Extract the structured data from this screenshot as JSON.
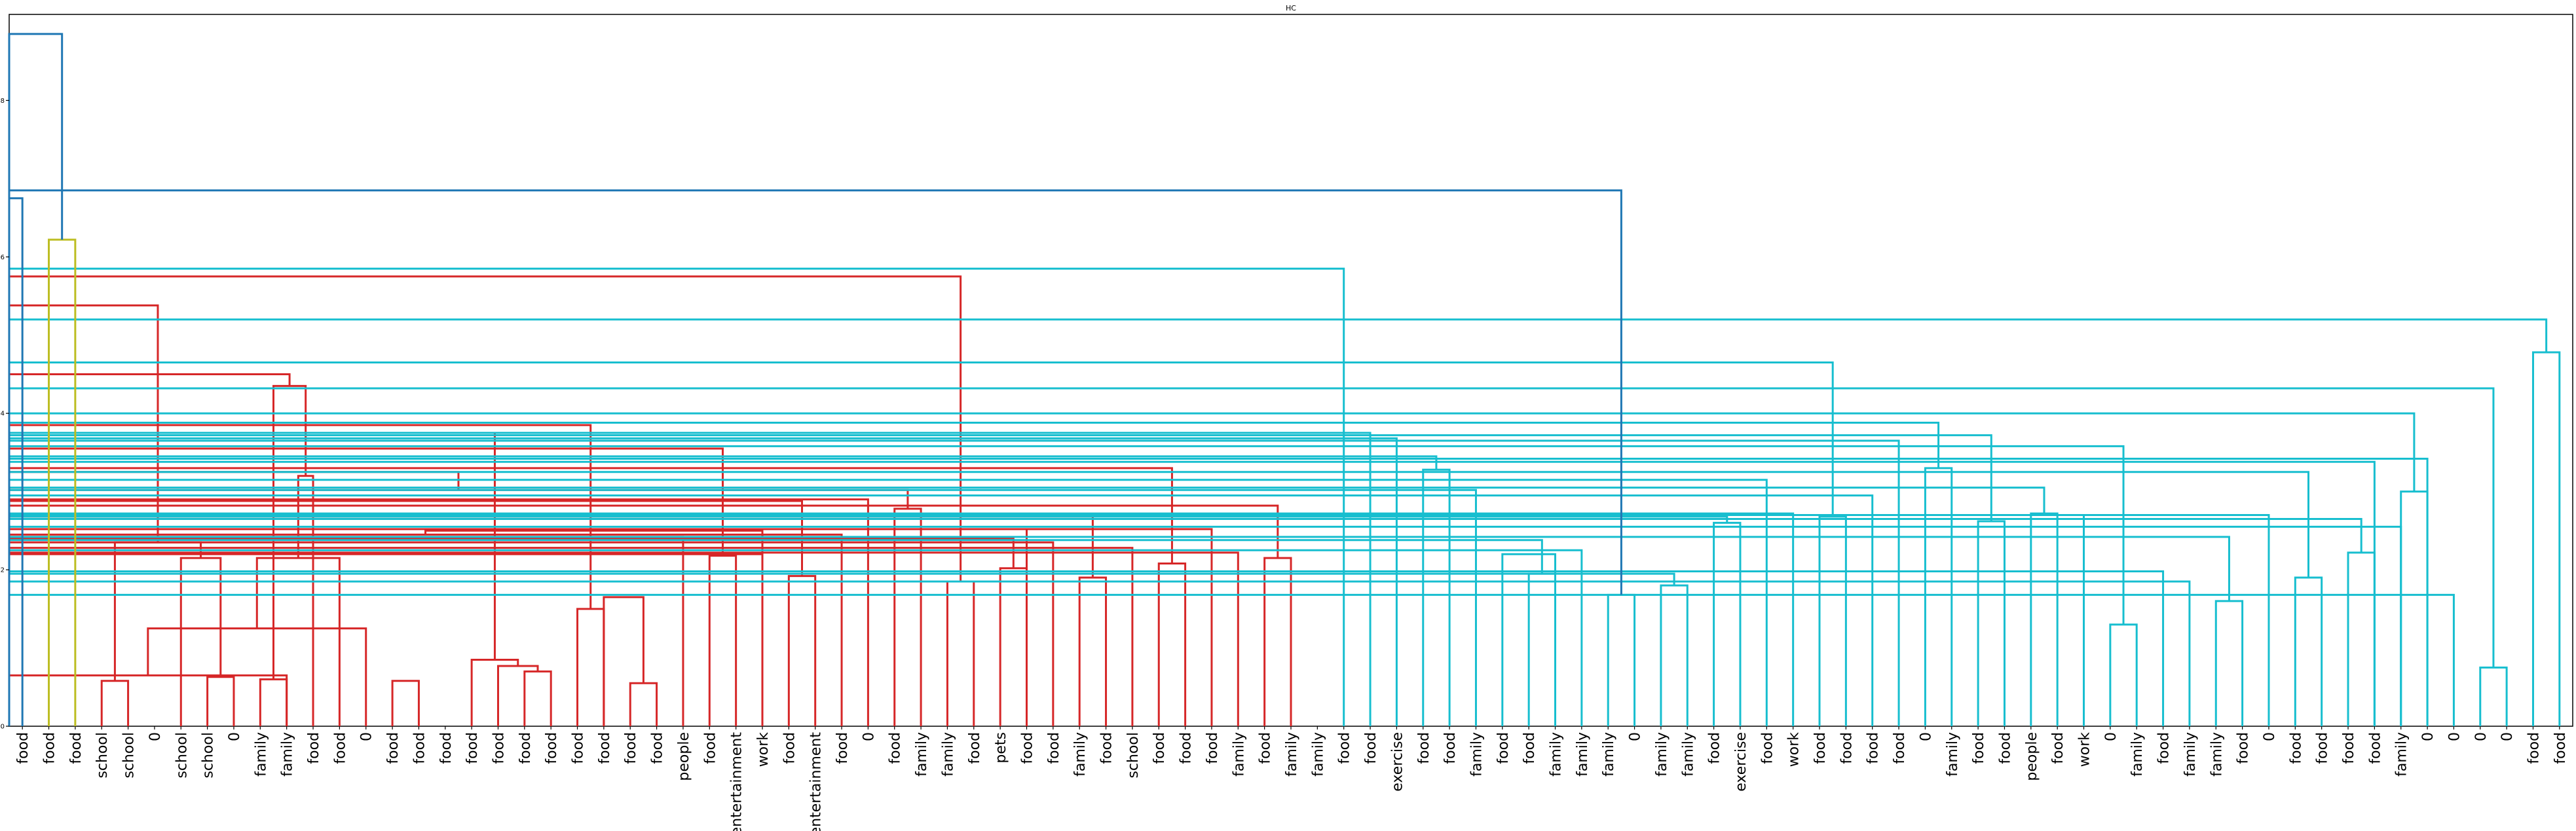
{
  "chart_data": {
    "type": "dendrogram",
    "title": "HC",
    "xlabel": "",
    "ylabel": "",
    "ylim": [
      0,
      9.1
    ],
    "yticks": [
      0,
      2,
      4,
      6,
      8
    ],
    "colors": {
      "C1": "#d62728",
      "C2": "#bcbd22",
      "C3": "#17becf",
      "above": "#1f77b4"
    },
    "leaves": [
      "food",
      "food",
      "food",
      "school",
      "school",
      "0",
      "school",
      "school",
      "0",
      "family",
      "family",
      "food",
      "food",
      "0",
      "food",
      "food",
      "food",
      "food",
      "food",
      "food",
      "food",
      "food",
      "food",
      "food",
      "food",
      "people",
      "food",
      "entertainment",
      "work",
      "food",
      "entertainment",
      "food",
      "0",
      "food",
      "family",
      "family",
      "food",
      "pets",
      "food",
      "food",
      "family",
      "food",
      "school",
      "food",
      "food",
      "food",
      "family",
      "food",
      "family",
      "family",
      "food",
      "food",
      "exercise",
      "food",
      "food",
      "family",
      "food",
      "food",
      "family",
      "family",
      "family",
      "0",
      "family",
      "family",
      "food",
      "exercise",
      "food",
      "work",
      "food",
      "food",
      "food",
      "food",
      "0",
      "family",
      "food",
      "food",
      "people",
      "food",
      "work",
      "0",
      "family",
      "food",
      "family",
      "family",
      "food",
      "0",
      "food",
      "food",
      "food",
      "food",
      "family",
      "0",
      "0",
      "0",
      "0",
      "food",
      "food"
    ],
    "merges": [
      {
        "a": 3,
        "b": 4,
        "h": 0.58,
        "c": "C1"
      },
      {
        "a": 10,
        "b": 9,
        "h": 0.6,
        "c": "C1"
      },
      {
        "a": 7,
        "b": 8,
        "h": 0.63,
        "c": "C1"
      },
      {
        "a": 101,
        "b": 10,
        "h": 0.65,
        "c": "C1"
      },
      {
        "a": 14,
        "b": 15,
        "h": 0.58,
        "c": "C1"
      },
      {
        "a": 19,
        "b": 20,
        "h": 0.7,
        "c": "C1"
      },
      {
        "a": 18,
        "b": 102,
        "h": 0.77,
        "c": "C1"
      },
      {
        "a": 17,
        "b": 103,
        "h": 0.85,
        "c": "C1"
      },
      {
        "a": 23,
        "b": 24,
        "h": 0.55,
        "c": "C1"
      },
      {
        "a": 13,
        "b": 100,
        "h": 1.25,
        "c": "C1"
      },
      {
        "a": 21,
        "b": 22,
        "h": 1.5,
        "c": "C1"
      },
      {
        "a": 22,
        "b": 105,
        "h": 1.65,
        "c": "C1"
      },
      {
        "a": 12,
        "b": 106,
        "h": 2.15,
        "c": "C1"
      },
      {
        "a": 6,
        "b": 99,
        "h": 2.15,
        "c": "C1"
      },
      {
        "a": 11,
        "b": 109,
        "h": 3.2,
        "c": "C1"
      },
      {
        "a": 97,
        "b": 110,
        "h": 2.35,
        "c": "C1"
      },
      {
        "a": 98,
        "b": 111,
        "h": 4.35,
        "c": "C1"
      },
      {
        "a": 35,
        "b": 36,
        "h": 1.85,
        "c": "C1"
      },
      {
        "a": 37,
        "b": 38,
        "h": 2.02,
        "c": "C1"
      },
      {
        "a": 115,
        "b": 116,
        "h": 2.4,
        "c": "C1"
      },
      {
        "a": 40,
        "b": 41,
        "h": 1.9,
        "c": "C1"
      },
      {
        "a": 39,
        "b": 118,
        "h": 2.35,
        "c": "C1"
      },
      {
        "a": 38,
        "b": 119,
        "h": 2.52,
        "c": "C1"
      },
      {
        "a": 117,
        "b": 120,
        "h": 2.68,
        "c": "C1"
      },
      {
        "a": 43,
        "b": 44,
        "h": 2.08,
        "c": "C1"
      },
      {
        "a": 42,
        "b": 122,
        "h": 2.28,
        "c": "C1"
      },
      {
        "a": 47,
        "b": 48,
        "h": 2.15,
        "c": "C1"
      },
      {
        "a": 46,
        "b": 124,
        "h": 2.22,
        "c": "C1"
      },
      {
        "a": 45,
        "b": 125,
        "h": 2.52,
        "c": "C1"
      },
      {
        "a": 123,
        "b": 126,
        "h": 2.82,
        "c": "C1"
      },
      {
        "a": 121,
        "b": 127,
        "h": 3.3,
        "c": "C1"
      },
      {
        "a": 26,
        "b": 27,
        "h": 2.18,
        "c": "C1"
      },
      {
        "a": 25,
        "b": 129,
        "h": 2.42,
        "c": "C1"
      },
      {
        "a": 29,
        "b": 30,
        "h": 1.92,
        "c": "C1"
      },
      {
        "a": 28,
        "b": 131,
        "h": 2.2,
        "c": "C1"
      },
      {
        "a": 132,
        "b": 31,
        "h": 2.45,
        "c": "C1"
      },
      {
        "a": 28,
        "b": 132,
        "h": 2.5,
        "c": "C1"
      },
      {
        "a": 33,
        "b": 34,
        "h": 2.78,
        "c": "C1"
      },
      {
        "a": 32,
        "b": 135,
        "h": 2.9,
        "c": "C1"
      },
      {
        "a": 134,
        "b": 136,
        "h": 3.02,
        "c": "C1"
      },
      {
        "a": 130,
        "b": 137,
        "h": 2.88,
        "c": "C1"
      },
      {
        "a": 138,
        "b": 136,
        "h": 3.25,
        "c": "C1"
      },
      {
        "a": 139,
        "b": 128,
        "h": 3.55,
        "c": "C1"
      },
      {
        "a": 104,
        "b": 140,
        "h": 3.75,
        "c": "C1"
      },
      {
        "a": 107,
        "b": 141,
        "h": 3.85,
        "c": "C1"
      },
      {
        "a": 113,
        "b": 142,
        "h": 4.5,
        "c": "C1"
      },
      {
        "a": 112,
        "b": 143,
        "h": 5.38,
        "c": "C1"
      },
      {
        "a": 114,
        "b": 144,
        "h": 5.75,
        "c": "C1"
      },
      {
        "a": 60,
        "b": 61,
        "h": 1.68,
        "c": "C3"
      },
      {
        "a": 62,
        "b": 63,
        "h": 1.8,
        "c": "C3"
      },
      {
        "a": 146,
        "b": 147,
        "h": 1.95,
        "c": "C3"
      },
      {
        "a": 59,
        "b": 148,
        "h": 2.25,
        "c": "C3"
      },
      {
        "a": 57,
        "b": 58,
        "h": 1.95,
        "c": "C3"
      },
      {
        "a": 56,
        "b": 58,
        "h": 2.2,
        "c": "C3"
      },
      {
        "a": 151,
        "b": 149,
        "h": 2.38,
        "c": "C3"
      },
      {
        "a": 64,
        "b": 65,
        "h": 2.6,
        "c": "C3"
      },
      {
        "a": 152,
        "b": 153,
        "h": 2.68,
        "c": "C3"
      },
      {
        "a": 55,
        "b": 154,
        "h": 3.02,
        "c": "C3"
      },
      {
        "a": 53,
        "b": 54,
        "h": 3.28,
        "c": "C3"
      },
      {
        "a": 52,
        "b": 156,
        "h": 3.68,
        "c": "C3"
      },
      {
        "a": 51,
        "b": 157,
        "h": 3.75,
        "c": "C3"
      },
      {
        "a": 68,
        "b": 69,
        "h": 2.68,
        "c": "C3"
      },
      {
        "a": 67,
        "b": 159,
        "h": 2.72,
        "c": "C3"
      },
      {
        "a": 160,
        "b": 70,
        "h": 2.95,
        "c": "C3"
      },
      {
        "a": 66,
        "b": 161,
        "h": 3.15,
        "c": "C3"
      },
      {
        "a": 155,
        "b": 162,
        "h": 3.45,
        "c": "C3"
      },
      {
        "a": 72,
        "b": 73,
        "h": 3.3,
        "c": "C3"
      },
      {
        "a": 71,
        "b": 164,
        "h": 3.65,
        "c": "C3"
      },
      {
        "a": 74,
        "b": 75,
        "h": 2.62,
        "c": "C3"
      },
      {
        "a": 76,
        "b": 77,
        "h": 2.72,
        "c": "C3"
      },
      {
        "a": 166,
        "b": 167,
        "h": 3.05,
        "c": "C3"
      },
      {
        "a": 79,
        "b": 80,
        "h": 1.3,
        "c": "C3"
      },
      {
        "a": 83,
        "b": 84,
        "h": 1.6,
        "c": "C3"
      },
      {
        "a": 82,
        "b": 170,
        "h": 1.85,
        "c": "C3"
      },
      {
        "a": 81,
        "b": 171,
        "h": 1.98,
        "c": "C3"
      },
      {
        "a": 169,
        "b": 172,
        "h": 2.42,
        "c": "C3"
      },
      {
        "a": 78,
        "b": 173,
        "h": 2.7,
        "c": "C3"
      },
      {
        "a": 86,
        "b": 87,
        "h": 1.9,
        "c": "C3"
      },
      {
        "a": 88,
        "b": 89,
        "h": 2.22,
        "c": "C3"
      },
      {
        "a": 176,
        "b": 90,
        "h": 2.55,
        "c": "C3"
      },
      {
        "a": 175,
        "b": 177,
        "h": 2.65,
        "c": "C3"
      },
      {
        "a": 85,
        "b": 178,
        "h": 2.7,
        "c": "C3"
      },
      {
        "a": 174,
        "b": 179,
        "h": 3.25,
        "c": "C3"
      },
      {
        "a": 168,
        "b": 180,
        "h": 3.58,
        "c": "C3"
      },
      {
        "a": 165,
        "b": 181,
        "h": 3.72,
        "c": "C3"
      },
      {
        "a": 163,
        "b": 182,
        "h": 3.88,
        "c": "C3"
      },
      {
        "a": 93,
        "b": 94,
        "h": 0.75,
        "c": "C3"
      },
      {
        "a": 92,
        "b": 184,
        "h": 1.68,
        "c": "C3"
      },
      {
        "a": 91,
        "b": 185,
        "h": 3.42,
        "c": "C3"
      },
      {
        "a": 90,
        "b": 91,
        "h": 3.0,
        "c": "C3"
      },
      {
        "a": 89,
        "b": 187,
        "h": 3.38,
        "c": "C3"
      },
      {
        "a": 188,
        "b": 186,
        "h": 4.0,
        "c": "C3"
      },
      {
        "a": 183,
        "b": 189,
        "h": 4.32,
        "c": "C3"
      },
      {
        "a": 158,
        "b": 190,
        "h": 4.65,
        "c": "C3"
      },
      {
        "a": 95,
        "b": 96,
        "h": 4.78,
        "c": "C3"
      },
      {
        "a": 191,
        "b": 192,
        "h": 5.2,
        "c": "C3"
      },
      {
        "a": 50,
        "b": 193,
        "h": 5.85,
        "c": "C3"
      },
      {
        "a": 145,
        "b": 194,
        "h": 6.85,
        "c": "above"
      },
      {
        "a": 1,
        "b": 2,
        "h": 6.22,
        "c": "C2"
      },
      {
        "a": 0,
        "b": 196,
        "h": 6.75,
        "c": "above"
      },
      {
        "a": 197,
        "b": 195,
        "h": 8.85,
        "c": "above"
      }
    ]
  }
}
